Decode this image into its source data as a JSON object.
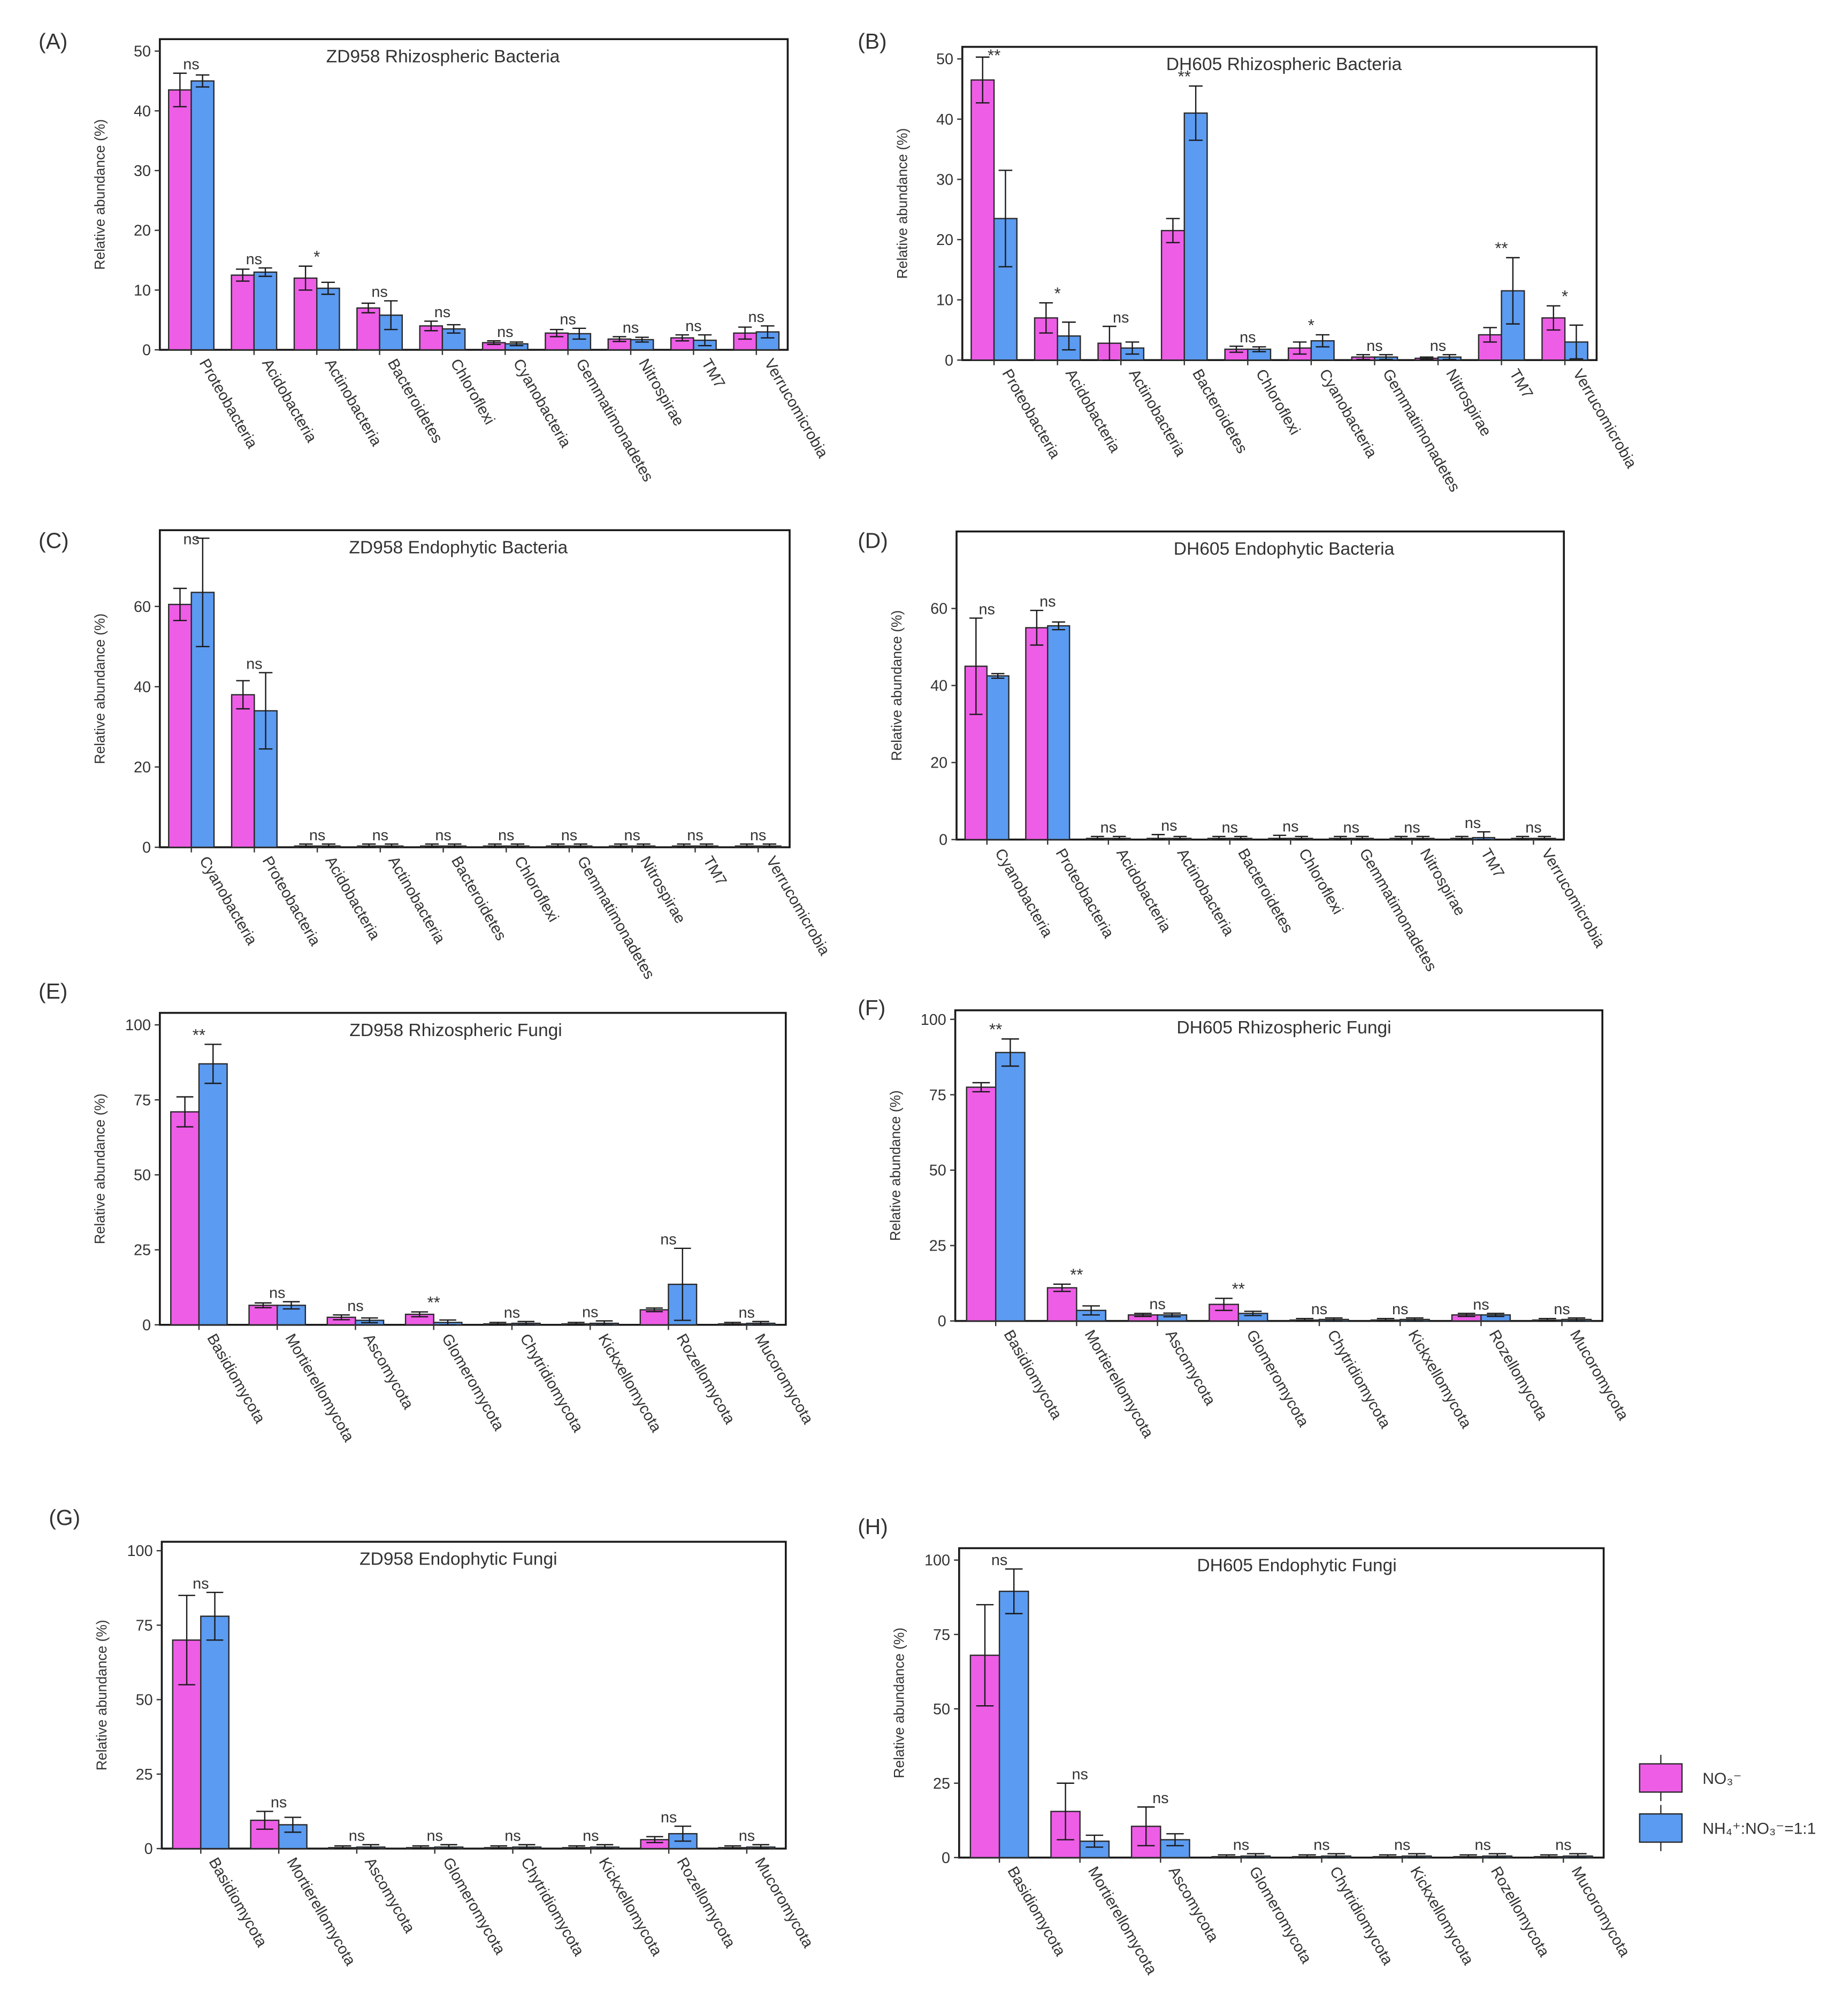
{
  "figure": {
    "legend": {
      "items": [
        {
          "name": "NO3-",
          "label": "NO₃⁻",
          "color": "#ee5de6"
        },
        {
          "name": "NH4+:NO3-=1:1",
          "label": "NH₄⁺:NO₃⁻=1:1",
          "color": "#5b9bf1"
        }
      ]
    }
  },
  "chart_data": [
    {
      "panel": "(A)",
      "type": "bar",
      "title": "ZD958 Rhizospheric Bacteria",
      "ylabel": "Relative abundance (%)",
      "xlabel": "",
      "ylim": [
        0,
        52
      ],
      "yticks": [
        0,
        10,
        20,
        30,
        40,
        50
      ],
      "categories": [
        "Proteobacteria",
        "Acidobacteria",
        "Actinobacteria",
        "Bacteroidetes",
        "Chloroflexi",
        "Cyanobacteria",
        "Gemmatimonadetes",
        "Nitrospirae",
        "TM7",
        "Verrucomicrobia"
      ],
      "series": [
        {
          "name": "NO3-",
          "values": [
            43.5,
            12.5,
            12.0,
            7.0,
            4.0,
            1.2,
            2.8,
            1.8,
            2.0,
            2.8
          ],
          "errors": [
            2.8,
            1.0,
            2.0,
            0.8,
            0.8,
            0.3,
            0.6,
            0.4,
            0.5,
            1.0
          ]
        },
        {
          "name": "NH4+:NO3-=1:1",
          "values": [
            45.0,
            13.0,
            10.3,
            5.8,
            3.5,
            1.0,
            2.7,
            1.7,
            1.6,
            3.0
          ],
          "errors": [
            1.0,
            0.7,
            1.0,
            2.4,
            0.7,
            0.3,
            0.9,
            0.4,
            0.9,
            1.0
          ]
        }
      ],
      "significance": [
        "ns",
        "ns",
        "*",
        "ns",
        "ns",
        "ns",
        "ns",
        "ns",
        "ns",
        "ns"
      ]
    },
    {
      "panel": "(B)",
      "type": "bar",
      "title": "DH605 Rhizospheric Bacteria",
      "ylabel": "Relative abundance (%)",
      "xlabel": "",
      "ylim": [
        0,
        52
      ],
      "yticks": [
        0,
        10,
        20,
        30,
        40,
        50
      ],
      "categories": [
        "Proteobacteria",
        "Acidobacteria",
        "Actinobacteria",
        "Bacteroidetes",
        "Chloroflexi",
        "Cyanobacteria",
        "Gemmatimonadetes",
        "Nitrospirae",
        "TM7",
        "Verrucomicrobia"
      ],
      "series": [
        {
          "name": "NO3-",
          "values": [
            46.5,
            7.0,
            2.8,
            21.5,
            1.8,
            2.0,
            0.5,
            0.3,
            4.2,
            7.0
          ],
          "errors": [
            3.8,
            2.5,
            2.8,
            2.0,
            0.5,
            1.0,
            0.4,
            0.2,
            1.2,
            2.0
          ]
        },
        {
          "name": "NH4+:NO3-=1:1",
          "values": [
            23.5,
            4.0,
            2.0,
            41.0,
            1.8,
            3.2,
            0.5,
            0.5,
            11.5,
            3.0
          ],
          "errors": [
            8.0,
            2.3,
            1.0,
            4.5,
            0.4,
            1.0,
            0.4,
            0.4,
            5.5,
            2.8
          ]
        }
      ],
      "significance": [
        "**",
        "*",
        "ns",
        "**",
        "ns",
        "*",
        "ns",
        "ns",
        "**",
        "*"
      ]
    },
    {
      "panel": "(C)",
      "type": "bar",
      "title": "ZD958 Endophytic Bacteria",
      "ylabel": "Relative abundance (%)",
      "xlabel": "",
      "ylim": [
        0,
        79
      ],
      "yticks": [
        0,
        20,
        40,
        60
      ],
      "categories": [
        "Cyanobacteria",
        "Proteobacteria",
        "Acidobacteria",
        "Actinobacteria",
        "Bacteroidetes",
        "Chloroflexi",
        "Gemmatimonadetes",
        "Nitrospirae",
        "TM7",
        "Verrucomicrobia"
      ],
      "series": [
        {
          "name": "NO3-",
          "values": [
            60.5,
            38.0,
            0.3,
            0.3,
            0.3,
            0.3,
            0.3,
            0.3,
            0.3,
            0.3
          ],
          "errors": [
            4.0,
            3.5,
            0.5,
            0.5,
            0.5,
            0.5,
            0.5,
            0.5,
            0.5,
            0.5
          ]
        },
        {
          "name": "NH4+:NO3-=1:1",
          "values": [
            63.5,
            34.0,
            0.3,
            0.3,
            0.3,
            0.3,
            0.3,
            0.3,
            0.3,
            0.3
          ],
          "errors": [
            13.5,
            9.5,
            0.5,
            0.5,
            0.5,
            0.5,
            0.5,
            0.5,
            0.5,
            0.5
          ]
        }
      ],
      "significance": [
        "ns",
        "ns",
        "ns",
        "ns",
        "ns",
        "ns",
        "ns",
        "ns",
        "ns",
        "ns"
      ]
    },
    {
      "panel": "(D)",
      "type": "bar",
      "title": "DH605 Endophytic Bacteria",
      "ylabel": "Relative abundance (%)",
      "xlabel": "",
      "ylim": [
        0,
        80
      ],
      "yticks": [
        0,
        20,
        40,
        60
      ],
      "categories": [
        "Cyanobacteria",
        "Proteobacteria",
        "Acidobacteria",
        "Actinobacteria",
        "Bacteroidetes",
        "Chloroflexi",
        "Gemmatimonadetes",
        "Nitrospirae",
        "TM7",
        "Verrucomicrobia"
      ],
      "series": [
        {
          "name": "NO3-",
          "values": [
            45.0,
            55.0,
            0.3,
            0.3,
            0.3,
            0.3,
            0.3,
            0.3,
            0.3,
            0.3
          ],
          "errors": [
            12.5,
            4.5,
            0.5,
            1.0,
            0.5,
            0.8,
            0.5,
            0.5,
            0.5,
            0.5
          ]
        },
        {
          "name": "NH4+:NO3-=1:1",
          "values": [
            42.5,
            55.5,
            0.3,
            0.3,
            0.3,
            0.3,
            0.3,
            0.3,
            0.5,
            0.3
          ],
          "errors": [
            0.6,
            1.0,
            0.5,
            0.5,
            0.5,
            0.5,
            0.5,
            0.5,
            1.5,
            0.5
          ]
        }
      ],
      "significance": [
        "ns",
        "ns",
        "ns",
        "ns",
        "ns",
        "ns",
        "ns",
        "ns",
        "ns",
        "ns"
      ]
    },
    {
      "panel": "(E)",
      "type": "bar",
      "title": "ZD958 Rhizospheric Fungi",
      "ylabel": "Relative abundance (%)",
      "xlabel": "",
      "ylim": [
        0,
        104
      ],
      "yticks": [
        0,
        25,
        50,
        75,
        100
      ],
      "categories": [
        "Basidiomycota",
        "Mortierellomycota",
        "Ascomycota",
        "Glomeromycota",
        "Chytridiomycota",
        "Kickxellomycota",
        "Rozellomycota",
        "Mucoromycota"
      ],
      "series": [
        {
          "name": "NO3-",
          "values": [
            71.0,
            6.5,
            2.5,
            3.5,
            0.3,
            0.3,
            5.0,
            0.3
          ],
          "errors": [
            5.0,
            0.8,
            0.8,
            0.8,
            0.5,
            0.5,
            0.6,
            0.5
          ]
        },
        {
          "name": "NH4+:NO3-=1:1",
          "values": [
            87.0,
            6.5,
            1.5,
            0.8,
            0.5,
            0.5,
            13.5,
            0.5
          ],
          "errors": [
            6.5,
            1.2,
            0.8,
            0.8,
            0.6,
            0.8,
            12.0,
            0.6
          ]
        }
      ],
      "significance": [
        "**",
        "ns",
        "ns",
        "**",
        "ns",
        "ns",
        "ns",
        "ns"
      ]
    },
    {
      "panel": "(F)",
      "type": "bar",
      "title": "DH605 Rhizospheric Fungi",
      "ylabel": "Relative abundance (%)",
      "xlabel": "",
      "ylim": [
        0,
        103
      ],
      "yticks": [
        0,
        25,
        50,
        75,
        100
      ],
      "categories": [
        "Basidiomycota",
        "Mortierellomycota",
        "Ascomycota",
        "Glomeromycota",
        "Chytridiomycota",
        "Kickxellomycota",
        "Rozellomycota",
        "Mucoromycota"
      ],
      "series": [
        {
          "name": "NO3-",
          "values": [
            77.5,
            11.0,
            2.0,
            5.5,
            0.3,
            0.3,
            2.0,
            0.3
          ],
          "errors": [
            1.5,
            1.2,
            0.5,
            2.0,
            0.5,
            0.5,
            0.5,
            0.5
          ]
        },
        {
          "name": "NH4+:NO3-=1:1",
          "values": [
            89.0,
            3.5,
            2.0,
            2.5,
            0.5,
            0.5,
            2.0,
            0.5
          ],
          "errors": [
            4.5,
            1.5,
            0.6,
            0.7,
            0.5,
            0.5,
            0.5,
            0.5
          ]
        }
      ],
      "significance": [
        "**",
        "**",
        "ns",
        "**",
        "ns",
        "ns",
        "ns",
        "ns"
      ]
    },
    {
      "panel": "(G)",
      "type": "bar",
      "title": "ZD958 Endophytic Fungi",
      "ylabel": "Relative abundance (%)",
      "xlabel": "",
      "ylim": [
        0,
        103
      ],
      "yticks": [
        0,
        25,
        50,
        75,
        100
      ],
      "categories": [
        "Basidiomycota",
        "Mortierellomycota",
        "Ascomycota",
        "Glomeromycota",
        "Chytridiomycota",
        "Kickxellomycota",
        "Rozellomycota",
        "Mucoromycota"
      ],
      "series": [
        {
          "name": "NO3-",
          "values": [
            70.0,
            9.5,
            0.3,
            0.3,
            0.3,
            0.3,
            3.0,
            0.3
          ],
          "errors": [
            15.0,
            3.0,
            0.6,
            0.6,
            0.6,
            0.6,
            1.0,
            0.6
          ]
        },
        {
          "name": "NH4+:NO3-=1:1",
          "values": [
            78.0,
            8.0,
            0.5,
            0.5,
            0.5,
            0.5,
            5.0,
            0.5
          ],
          "errors": [
            8.0,
            2.5,
            0.8,
            0.8,
            0.8,
            0.8,
            2.5,
            0.8
          ]
        }
      ],
      "significance": [
        "ns",
        "ns",
        "ns",
        "ns",
        "ns",
        "ns",
        "ns",
        "ns"
      ]
    },
    {
      "panel": "(H)",
      "type": "bar",
      "title": "DH605 Endophytic Fungi",
      "ylabel": "Relative abundance (%)",
      "xlabel": "",
      "ylim": [
        0,
        104
      ],
      "yticks": [
        0,
        25,
        50,
        75,
        100
      ],
      "categories": [
        "Basidiomycota",
        "Mortierellomycota",
        "Ascomycota",
        "Glomeromycota",
        "Chytridiomycota",
        "Kickxellomycota",
        "Rozellomycota",
        "Mucoromycota"
      ],
      "series": [
        {
          "name": "NO3-",
          "values": [
            68.0,
            15.5,
            10.5,
            0.3,
            0.3,
            0.3,
            0.3,
            0.3
          ],
          "errors": [
            17.0,
            9.5,
            6.5,
            0.6,
            0.6,
            0.6,
            0.6,
            0.6
          ]
        },
        {
          "name": "NH4+:NO3-=1:1",
          "values": [
            89.5,
            5.5,
            6.0,
            0.5,
            0.5,
            0.5,
            0.5,
            0.5
          ],
          "errors": [
            7.5,
            2.0,
            2.0,
            0.8,
            0.8,
            0.8,
            0.8,
            0.8
          ]
        }
      ],
      "significance": [
        "ns",
        "ns",
        "ns",
        "ns",
        "ns",
        "ns",
        "ns",
        "ns"
      ]
    }
  ]
}
